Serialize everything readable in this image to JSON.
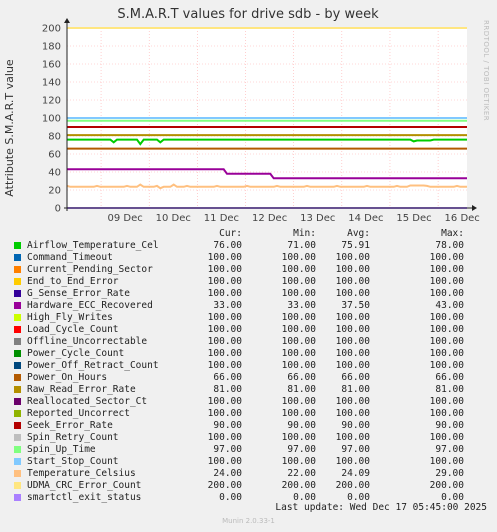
{
  "chart_data": {
    "type": "line",
    "title": "S.M.A.R.T values for drive sdb - by week",
    "ylabel": "Attribute S.M.A.R.T value",
    "ylim": [
      0,
      200
    ],
    "yticks": [
      0,
      20,
      40,
      60,
      80,
      100,
      120,
      140,
      160,
      180,
      200
    ],
    "x_ticks": [
      "09 Dec",
      "10 Dec",
      "11 Dec",
      "12 Dec",
      "13 Dec",
      "14 Dec",
      "15 Dec",
      "16 Dec"
    ],
    "grid": true,
    "columns": [
      "Cur:",
      "Min:",
      "Avg:",
      "Max:"
    ],
    "series": [
      {
        "name": "Airflow_Temperature_Cel",
        "color": "#00cc00",
        "cur": "76.00",
        "min": "71.00",
        "avg": "75.91",
        "max": "78.00"
      },
      {
        "name": "Command_Timeout",
        "color": "#0066b3",
        "cur": "100.00",
        "min": "100.00",
        "avg": "100.00",
        "max": "100.00"
      },
      {
        "name": "Current_Pending_Sector",
        "color": "#ff8000",
        "cur": "100.00",
        "min": "100.00",
        "avg": "100.00",
        "max": "100.00"
      },
      {
        "name": "End_to_End_Error",
        "color": "#ffcc00",
        "cur": "100.00",
        "min": "100.00",
        "avg": "100.00",
        "max": "100.00"
      },
      {
        "name": "G_Sense_Error_Rate",
        "color": "#330099",
        "cur": "100.00",
        "min": "100.00",
        "avg": "100.00",
        "max": "100.00"
      },
      {
        "name": "Hardware_ECC_Recovered",
        "color": "#990099",
        "cur": "33.00",
        "min": "33.00",
        "avg": "37.50",
        "max": "43.00"
      },
      {
        "name": "High_Fly_Writes",
        "color": "#ccff00",
        "cur": "100.00",
        "min": "100.00",
        "avg": "100.00",
        "max": "100.00"
      },
      {
        "name": "Load_Cycle_Count",
        "color": "#ff0000",
        "cur": "100.00",
        "min": "100.00",
        "avg": "100.00",
        "max": "100.00"
      },
      {
        "name": "Offline_Uncorrectable",
        "color": "#808080",
        "cur": "100.00",
        "min": "100.00",
        "avg": "100.00",
        "max": "100.00"
      },
      {
        "name": "Power_Cycle_Count",
        "color": "#008f00",
        "cur": "100.00",
        "min": "100.00",
        "avg": "100.00",
        "max": "100.00"
      },
      {
        "name": "Power_Off_Retract_Count",
        "color": "#00487d",
        "cur": "100.00",
        "min": "100.00",
        "avg": "100.00",
        "max": "100.00"
      },
      {
        "name": "Power_On_Hours",
        "color": "#b35a00",
        "cur": "66.00",
        "min": "66.00",
        "avg": "66.00",
        "max": "66.00"
      },
      {
        "name": "Raw_Read_Error_Rate",
        "color": "#b38f00",
        "cur": "81.00",
        "min": "81.00",
        "avg": "81.00",
        "max": "81.00"
      },
      {
        "name": "Reallocated_Sector_Ct",
        "color": "#6b006b",
        "cur": "100.00",
        "min": "100.00",
        "avg": "100.00",
        "max": "100.00"
      },
      {
        "name": "Reported_Uncorrect",
        "color": "#8fb300",
        "cur": "100.00",
        "min": "100.00",
        "avg": "100.00",
        "max": "100.00"
      },
      {
        "name": "Seek_Error_Rate",
        "color": "#b30000",
        "cur": "90.00",
        "min": "90.00",
        "avg": "90.00",
        "max": "90.00"
      },
      {
        "name": "Spin_Retry_Count",
        "color": "#bebebe",
        "cur": "100.00",
        "min": "100.00",
        "avg": "100.00",
        "max": "100.00"
      },
      {
        "name": "Spin_Up_Time",
        "color": "#80ff80",
        "cur": "97.00",
        "min": "97.00",
        "avg": "97.00",
        "max": "97.00"
      },
      {
        "name": "Start_Stop_Count",
        "color": "#80c9ff",
        "cur": "100.00",
        "min": "100.00",
        "avg": "100.00",
        "max": "100.00"
      },
      {
        "name": "Temperature_Celsius",
        "color": "#ffc080",
        "cur": "24.00",
        "min": "22.00",
        "avg": "24.09",
        "max": "29.00"
      },
      {
        "name": "UDMA_CRC_Error_Count",
        "color": "#ffe680",
        "cur": "200.00",
        "min": "200.00",
        "avg": "200.00",
        "max": "200.00"
      },
      {
        "name": "smartctl_exit_status",
        "color": "#aa80ff",
        "cur": "0.00",
        "min": "0.00",
        "avg": "0.00",
        "max": "0.00"
      }
    ]
  },
  "watermark": "RRDTOOL / TOBI OETIKER",
  "footer": "Last update:  Wed Dec 17 05:45:00 2025",
  "munin_version": "Munin 2.0.33-1"
}
